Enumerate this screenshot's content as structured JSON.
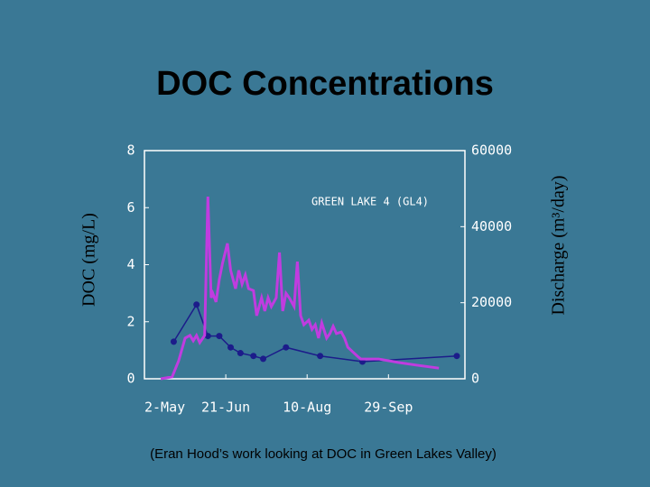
{
  "chart_data": {
    "type": "line",
    "title": "DOC Concentrations",
    "annotation": "GREEN LAKE 4 (GL4)",
    "footnote": "(Eran Hood’s work looking at DOC in Green Lakes Valley)",
    "y_label": "DOC (mg/L)",
    "y2_label": "Discharge (m³/day)",
    "xlim": [
      0,
      197
    ],
    "xticks": [
      {
        "value": 0,
        "label": "2-May"
      },
      {
        "value": 50,
        "label": "21-Jun"
      },
      {
        "value": 100,
        "label": "10-Aug"
      },
      {
        "value": 150,
        "label": "29-Sep"
      }
    ],
    "ylim": [
      0,
      8
    ],
    "yticks": [
      0,
      2,
      4,
      6,
      8
    ],
    "y2lim": [
      0,
      60000
    ],
    "y2ticks": [
      0,
      20000,
      40000,
      60000
    ],
    "series": [
      {
        "name": "DOC",
        "color": "#1c1c8a",
        "markers": true,
        "x": [
          18,
          32,
          39,
          46,
          53,
          59,
          67,
          73,
          87,
          108,
          134,
          192
        ],
        "values": [
          1.3,
          2.6,
          1.5,
          1.5,
          1.1,
          0.9,
          0.8,
          0.7,
          1.1,
          0.8,
          0.6,
          0.8
        ]
      },
      {
        "name": "Discharge",
        "color": "#c03ce0",
        "axis": "y2",
        "markers": false,
        "x": [
          10,
          17,
          21,
          25,
          28,
          30,
          32,
          34,
          37,
          39,
          41,
          42,
          44,
          46,
          48,
          51,
          53,
          56,
          58,
          60,
          62,
          64,
          67,
          69,
          72,
          74,
          76,
          78,
          81,
          83,
          85,
          87,
          89,
          92,
          94,
          96,
          98,
          101,
          103,
          105,
          107,
          109,
          112,
          114,
          116,
          118,
          121,
          123,
          125,
          128,
          131,
          133,
          144,
          156,
          167,
          181
        ],
        "values": [
          0,
          500,
          4700,
          10700,
          11400,
          10000,
          11400,
          9500,
          11400,
          47900,
          21300,
          22500,
          20200,
          26100,
          30400,
          35600,
          28500,
          23700,
          28500,
          24900,
          27300,
          23700,
          23200,
          16600,
          21300,
          17800,
          21300,
          19000,
          21300,
          33200,
          17800,
          22500,
          21300,
          19000,
          30800,
          16600,
          14200,
          15400,
          13000,
          14200,
          10700,
          14700,
          10700,
          11900,
          13800,
          11900,
          12300,
          10700,
          8300,
          7100,
          5900,
          5200,
          5200,
          4300,
          3600,
          2800
        ]
      }
    ]
  }
}
